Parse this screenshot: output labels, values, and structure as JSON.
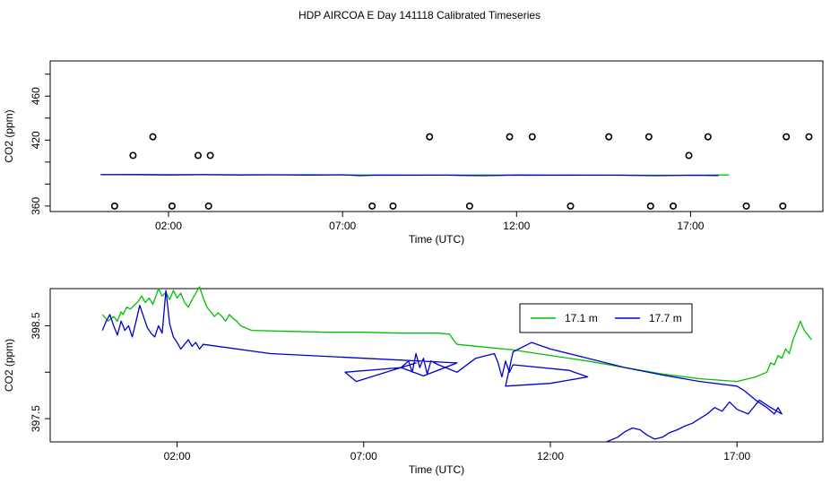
{
  "title": "HDP AIRCOA E  Day 141118  Calibrated Timeseries",
  "chart_data": [
    {
      "type": "scatter",
      "xlabel": "Time (UTC)",
      "ylabel": "CO2 (ppm)",
      "xlim": [
        -1.4,
        20.8
      ],
      "ylim": [
        355,
        492
      ],
      "x_ticks": [
        2,
        7,
        12,
        17
      ],
      "x_tick_labels": [
        "02:00",
        "07:00",
        "12:00",
        "17:00"
      ],
      "y_ticks": [
        360,
        380,
        400,
        420,
        440,
        460,
        480
      ],
      "y_tick_labels": [
        "360",
        "",
        "",
        "420",
        "",
        "460",
        ""
      ],
      "points": {
        "x": [
          0.45,
          0.98,
          1.55,
          2.1,
          2.85,
          3.15,
          3.2,
          7.85,
          8.45,
          9.5,
          10.65,
          11.8,
          12.45,
          13.55,
          14.65,
          15.8,
          15.85,
          16.5,
          16.95,
          17.5,
          18.6,
          19.65,
          19.75,
          20.4
        ],
        "y": [
          360,
          406,
          423,
          360,
          406,
          360,
          406,
          360,
          360,
          423,
          360,
          423,
          423,
          360,
          423,
          423,
          360,
          360,
          406,
          423,
          360,
          360,
          423,
          423
        ]
      },
      "series": [
        {
          "name": "",
          "color": "#00c000",
          "x": [
            0.05,
            1,
            2,
            3,
            4,
            5,
            6,
            7,
            8,
            9,
            10,
            11,
            12,
            13,
            14,
            15,
            16,
            17,
            18.1
          ],
          "y": [
            388.6,
            388.7,
            388.5,
            388.6,
            388.4,
            388.4,
            388.5,
            388.3,
            388.2,
            388.2,
            388.1,
            388.2,
            388.1,
            388.2,
            388.0,
            388.1,
            388.0,
            388.0,
            388.3
          ]
        },
        {
          "name": "",
          "color": "#0000d0",
          "x": [
            0.05,
            1,
            2,
            3,
            4,
            5,
            6,
            7,
            7.5,
            8,
            9,
            10,
            11,
            12,
            13,
            14,
            15,
            16,
            17,
            17.8
          ],
          "y": [
            388.5,
            388.6,
            388.3,
            388.5,
            388.3,
            388.4,
            388.1,
            388.4,
            387.6,
            388.1,
            388.0,
            388.1,
            387.6,
            388.2,
            388.0,
            388.1,
            388.0,
            387.6,
            388.0,
            387.8
          ]
        }
      ]
    },
    {
      "type": "line",
      "xlabel": "Time (UTC)",
      "ylabel": "CO2 (ppm)",
      "xlim": [
        -1.4,
        19.3
      ],
      "ylim": [
        397.25,
        398.9
      ],
      "x_ticks": [
        2,
        7,
        12,
        17
      ],
      "x_tick_labels": [
        "02:00",
        "07:00",
        "12:00",
        "17:00"
      ],
      "y_ticks": [
        397.5,
        398.0,
        398.5
      ],
      "y_tick_labels": [
        "397.5",
        "",
        "398.5"
      ],
      "legend": {
        "position": "top-right",
        "entries": [
          "17.1 m",
          "17.7 m"
        ]
      },
      "series": [
        {
          "name": "17.1 m",
          "color": "#00c000",
          "x": [
            0.0,
            0.15,
            0.3,
            0.4,
            0.5,
            0.55,
            0.65,
            0.75,
            0.85,
            0.95,
            1.05,
            1.15,
            1.25,
            1.35,
            1.45,
            1.5,
            1.6,
            1.7,
            1.8,
            1.9,
            2.0,
            2.1,
            2.2,
            2.3,
            2.4,
            2.5,
            2.6,
            2.7,
            2.8,
            2.9,
            3.0,
            3.1,
            3.2,
            3.3,
            3.4,
            3.5,
            3.6,
            3.7,
            4.0,
            5.0,
            6.0,
            7.0,
            8.0,
            9.0,
            9.3,
            9.4,
            9.5,
            10.0,
            11.0,
            12.0,
            13.0,
            14.0,
            15.0,
            16.0,
            17.0,
            17.5,
            17.8,
            17.9,
            18.0,
            18.1,
            18.2,
            18.3,
            18.4,
            18.5,
            18.6,
            18.7,
            18.8,
            18.9,
            19.0
          ],
          "y": [
            398.62,
            398.55,
            398.6,
            398.55,
            398.65,
            398.62,
            398.7,
            398.68,
            398.72,
            398.76,
            398.82,
            398.75,
            398.8,
            398.73,
            398.84,
            398.9,
            398.82,
            398.86,
            398.78,
            398.88,
            398.8,
            398.85,
            398.75,
            398.7,
            398.78,
            398.85,
            398.92,
            398.8,
            398.7,
            398.65,
            398.6,
            398.64,
            398.6,
            398.55,
            398.62,
            398.58,
            398.55,
            398.5,
            398.45,
            398.44,
            398.43,
            398.43,
            398.42,
            398.42,
            398.41,
            398.35,
            398.3,
            398.28,
            398.24,
            398.18,
            398.12,
            398.05,
            397.98,
            397.93,
            397.9,
            397.95,
            398.0,
            398.1,
            398.08,
            398.18,
            398.15,
            398.25,
            398.2,
            398.35,
            398.45,
            398.55,
            398.45,
            398.4,
            398.35
          ]
        },
        {
          "name": "17.7 m",
          "color": "#0000d0",
          "x": [
            0.0,
            0.1,
            0.2,
            0.3,
            0.4,
            0.5,
            0.6,
            0.7,
            0.8,
            0.9,
            1.0,
            1.1,
            1.2,
            1.3,
            1.4,
            1.5,
            1.6,
            1.7,
            1.8,
            1.9,
            2.0,
            2.1,
            2.2,
            2.3,
            2.4,
            2.5,
            2.6,
            2.7,
            4.5,
            7.0,
            9.5,
            8.6,
            8.0,
            6.5,
            6.8,
            8.4,
            8.0,
            8.2,
            8.3,
            8.4,
            8.5,
            8.6,
            8.7,
            8.8,
            9.0,
            9.5,
            10.0,
            10.5,
            10.6,
            10.7,
            10.8,
            10.9,
            11.0,
            12.5,
            13.0,
            12.0,
            10.8,
            11.0,
            11.5,
            12.0,
            13.0,
            14.0,
            15.0,
            16.0,
            17.0,
            17.2,
            17.5,
            17.8,
            18.0,
            18.1,
            18.2,
            17.9,
            17.6,
            17.3,
            17.0,
            16.8,
            16.6,
            16.4,
            16.2,
            16.0,
            15.8,
            15.6,
            15.4,
            15.2,
            15.0,
            14.8,
            14.6,
            14.4,
            14.2,
            14.0,
            13.8,
            13.5
          ],
          "y": [
            398.45,
            398.55,
            398.62,
            398.5,
            398.4,
            398.55,
            398.45,
            398.5,
            398.38,
            398.55,
            398.72,
            398.6,
            398.48,
            398.42,
            398.38,
            398.5,
            398.42,
            398.88,
            398.52,
            398.38,
            398.32,
            398.25,
            398.3,
            398.35,
            398.28,
            398.32,
            398.25,
            398.3,
            398.2,
            398.15,
            398.1,
            397.96,
            398.05,
            398.0,
            397.9,
            398.1,
            398.05,
            398.12,
            398.0,
            398.2,
            398.05,
            398.15,
            397.98,
            398.12,
            398.08,
            398.0,
            398.15,
            398.2,
            398.1,
            397.95,
            398.12,
            398.0,
            398.08,
            398.02,
            397.95,
            397.88,
            397.85,
            398.22,
            398.32,
            398.25,
            398.15,
            398.05,
            397.97,
            397.9,
            397.85,
            397.8,
            397.7,
            397.62,
            397.55,
            397.62,
            397.55,
            397.62,
            397.7,
            397.55,
            397.6,
            397.68,
            397.58,
            397.62,
            397.55,
            397.5,
            397.45,
            397.42,
            397.38,
            397.35,
            397.3,
            397.28,
            397.32,
            397.38,
            397.4,
            397.36,
            397.3,
            397.25
          ]
        }
      ]
    }
  ]
}
